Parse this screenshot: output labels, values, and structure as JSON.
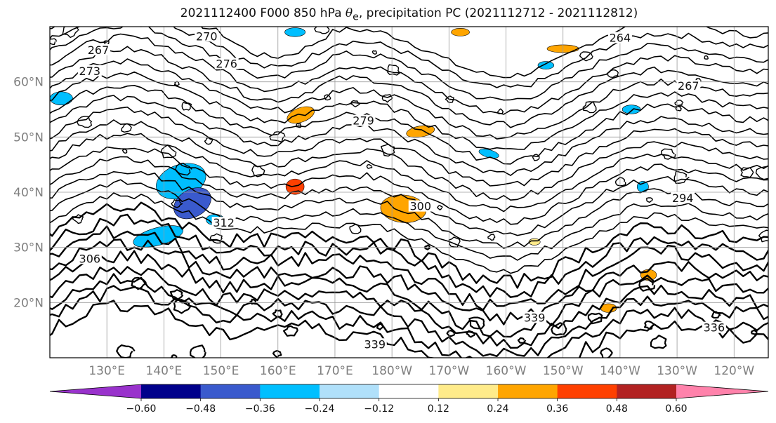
{
  "title": {
    "prefix": "2021112400 F000 850 hPa ",
    "var": "θ",
    "var_sub": "e",
    "suffix": ", precipitation PC (2021112712 - 2021112812)"
  },
  "map": {
    "projection": "PlateCarree",
    "extent_lon": [
      120,
      246
    ],
    "extent_lat": [
      10,
      70
    ],
    "gridlines": true,
    "lat_ticks": [
      {
        "value": 60,
        "label": "60°N"
      },
      {
        "value": 50,
        "label": "50°N"
      },
      {
        "value": 40,
        "label": "40°N"
      },
      {
        "value": 30,
        "label": "30°N"
      },
      {
        "value": 20,
        "label": "20°N"
      }
    ],
    "lon_ticks": [
      {
        "value": 130,
        "label": "130°E"
      },
      {
        "value": 140,
        "label": "140°E"
      },
      {
        "value": 150,
        "label": "150°E"
      },
      {
        "value": 160,
        "label": "160°E"
      },
      {
        "value": 170,
        "label": "170°E"
      },
      {
        "value": 180,
        "label": "180°W"
      },
      {
        "value": 190,
        "label": "170°W"
      },
      {
        "value": 200,
        "label": "160°W"
      },
      {
        "value": 210,
        "label": "150°W"
      },
      {
        "value": 220,
        "label": "140°W"
      },
      {
        "value": 230,
        "label": "130°W"
      },
      {
        "value": 240,
        "label": "120°W"
      }
    ],
    "contour_labels": [
      {
        "text": "267",
        "lon": 128.5,
        "lat": 65.3
      },
      {
        "text": "270",
        "lon": 147.5,
        "lat": 67.8
      },
      {
        "text": "276",
        "lon": 151.0,
        "lat": 62.8
      },
      {
        "text": "273",
        "lon": 127.0,
        "lat": 61.5
      },
      {
        "text": "264",
        "lon": 220.0,
        "lat": 67.5
      },
      {
        "text": "267",
        "lon": 232.0,
        "lat": 58.8
      },
      {
        "text": "279",
        "lon": 175.0,
        "lat": 52.5
      },
      {
        "text": "294",
        "lon": 231.0,
        "lat": 38.5
      },
      {
        "text": "300",
        "lon": 185.0,
        "lat": 37.0
      },
      {
        "text": "306",
        "lon": 127.0,
        "lat": 27.5
      },
      {
        "text": "312",
        "lon": 150.5,
        "lat": 34.0
      },
      {
        "text": "336",
        "lon": 236.5,
        "lat": 15.0
      },
      {
        "text": "339",
        "lon": 205.0,
        "lat": 16.8
      },
      {
        "text": "339",
        "lon": 177.0,
        "lat": 12.0
      }
    ]
  },
  "precip_anomalies": [
    {
      "lon": 143,
      "lat": 42,
      "rx": 4.5,
      "ry": 3.0,
      "rot": -20,
      "value": -0.3
    },
    {
      "lon": 145,
      "lat": 38,
      "rx": 3.5,
      "ry": 2.5,
      "rot": -30,
      "value": -0.4
    },
    {
      "lon": 139,
      "lat": 32,
      "rx": 4.5,
      "ry": 1.6,
      "rot": -15,
      "value": -0.3
    },
    {
      "lon": 149,
      "lat": 35,
      "rx": 1.6,
      "ry": 1.0,
      "rot": 0,
      "value": -0.3
    },
    {
      "lon": 122,
      "lat": 57,
      "rx": 2.0,
      "ry": 1.2,
      "rot": 0,
      "value": -0.3
    },
    {
      "lon": 163,
      "lat": 69,
      "rx": 1.8,
      "ry": 0.8,
      "rot": 0,
      "value": -0.3
    },
    {
      "lon": 197,
      "lat": 47,
      "rx": 1.8,
      "ry": 0.7,
      "rot": 15,
      "value": -0.3
    },
    {
      "lon": 222,
      "lat": 55,
      "rx": 1.6,
      "ry": 0.8,
      "rot": 0,
      "value": -0.3
    },
    {
      "lon": 224,
      "lat": 41,
      "rx": 1.0,
      "ry": 1.0,
      "rot": 0,
      "value": -0.3
    },
    {
      "lon": 207,
      "lat": 63,
      "rx": 1.4,
      "ry": 0.7,
      "rot": 0,
      "value": -0.3
    },
    {
      "lon": 182,
      "lat": 37,
      "rx": 4.0,
      "ry": 2.5,
      "rot": 5,
      "value": 0.3
    },
    {
      "lon": 164,
      "lat": 54,
      "rx": 2.5,
      "ry": 1.3,
      "rot": -20,
      "value": 0.3
    },
    {
      "lon": 163,
      "lat": 41,
      "rx": 1.6,
      "ry": 1.4,
      "rot": 0,
      "value": 0.42
    },
    {
      "lon": 185,
      "lat": 51,
      "rx": 2.5,
      "ry": 1.0,
      "rot": -10,
      "value": 0.3
    },
    {
      "lon": 210,
      "lat": 66,
      "rx": 2.8,
      "ry": 0.7,
      "rot": 0,
      "value": 0.3
    },
    {
      "lon": 192,
      "lat": 69,
      "rx": 1.6,
      "ry": 0.7,
      "rot": 0,
      "value": 0.3
    },
    {
      "lon": 225,
      "lat": 25,
      "rx": 1.4,
      "ry": 1.0,
      "rot": 0,
      "value": 0.3
    },
    {
      "lon": 218,
      "lat": 19,
      "rx": 1.4,
      "ry": 0.8,
      "rot": 0,
      "value": 0.3
    },
    {
      "lon": 205,
      "lat": 31,
      "rx": 1.0,
      "ry": 0.6,
      "rot": 0,
      "value": 0.2
    }
  ],
  "colorbar": {
    "levels": [
      -0.6,
      -0.48,
      -0.36,
      -0.24,
      -0.12,
      0.12,
      0.24,
      0.36,
      0.48,
      0.6
    ],
    "tick_labels": [
      "−0.60",
      "−0.48",
      "−0.36",
      "−0.24",
      "−0.12",
      "0.12",
      "0.24",
      "0.36",
      "0.48",
      "0.60"
    ],
    "colors": [
      "#9932cc",
      "#00008b",
      "#3a5acd",
      "#00bfff",
      "#b0e0fa",
      "#ffffff",
      "#ffeb8a",
      "#ffa500",
      "#ff4000",
      "#b22222",
      "#ff82ab"
    ],
    "extend": "both"
  }
}
